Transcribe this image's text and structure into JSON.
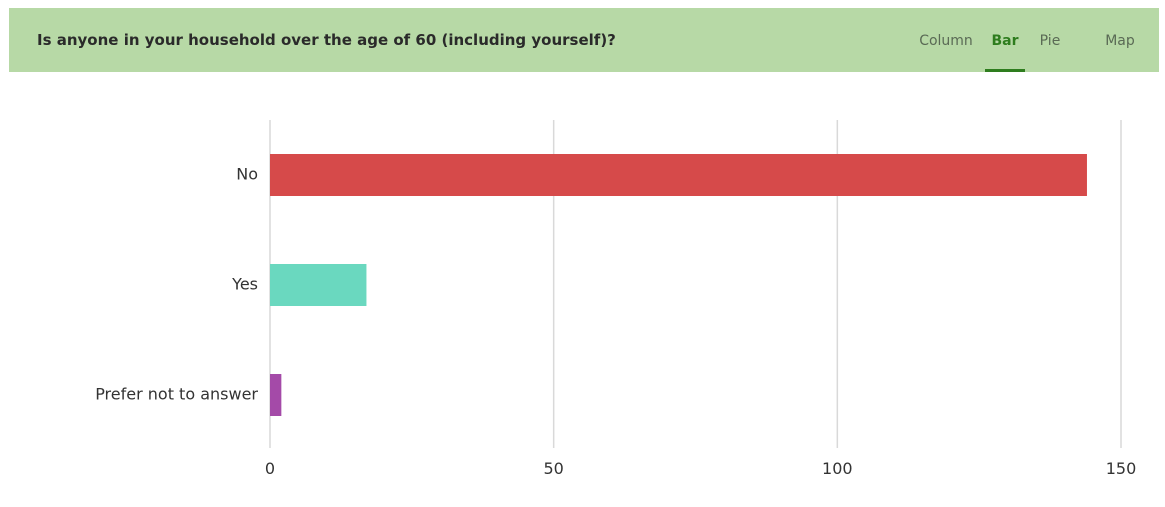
{
  "header": {
    "question": "Is anyone in your household over the age of 60 (including yourself)?",
    "tabs": [
      {
        "label": "Column",
        "active": false
      },
      {
        "label": "Bar",
        "active": true
      },
      {
        "label": "Pie",
        "active": false
      },
      {
        "label": "Map",
        "active": false
      }
    ]
  },
  "colors": {
    "header_bg": "#b7d9a6",
    "active_tab": "#2e7d1e",
    "grid": "#d9d9d9"
  },
  "chart_data": {
    "type": "bar",
    "orientation": "horizontal",
    "categories": [
      "No",
      "Yes",
      "Prefer not to answer"
    ],
    "values": [
      144,
      17,
      2
    ],
    "colors": [
      "#d64a4a",
      "#6ad8bf",
      "#a44aa8"
    ],
    "x_ticks": [
      "0",
      "50",
      "100",
      "150"
    ],
    "xlim": [
      0,
      150
    ],
    "grid": true,
    "legend": "none"
  }
}
